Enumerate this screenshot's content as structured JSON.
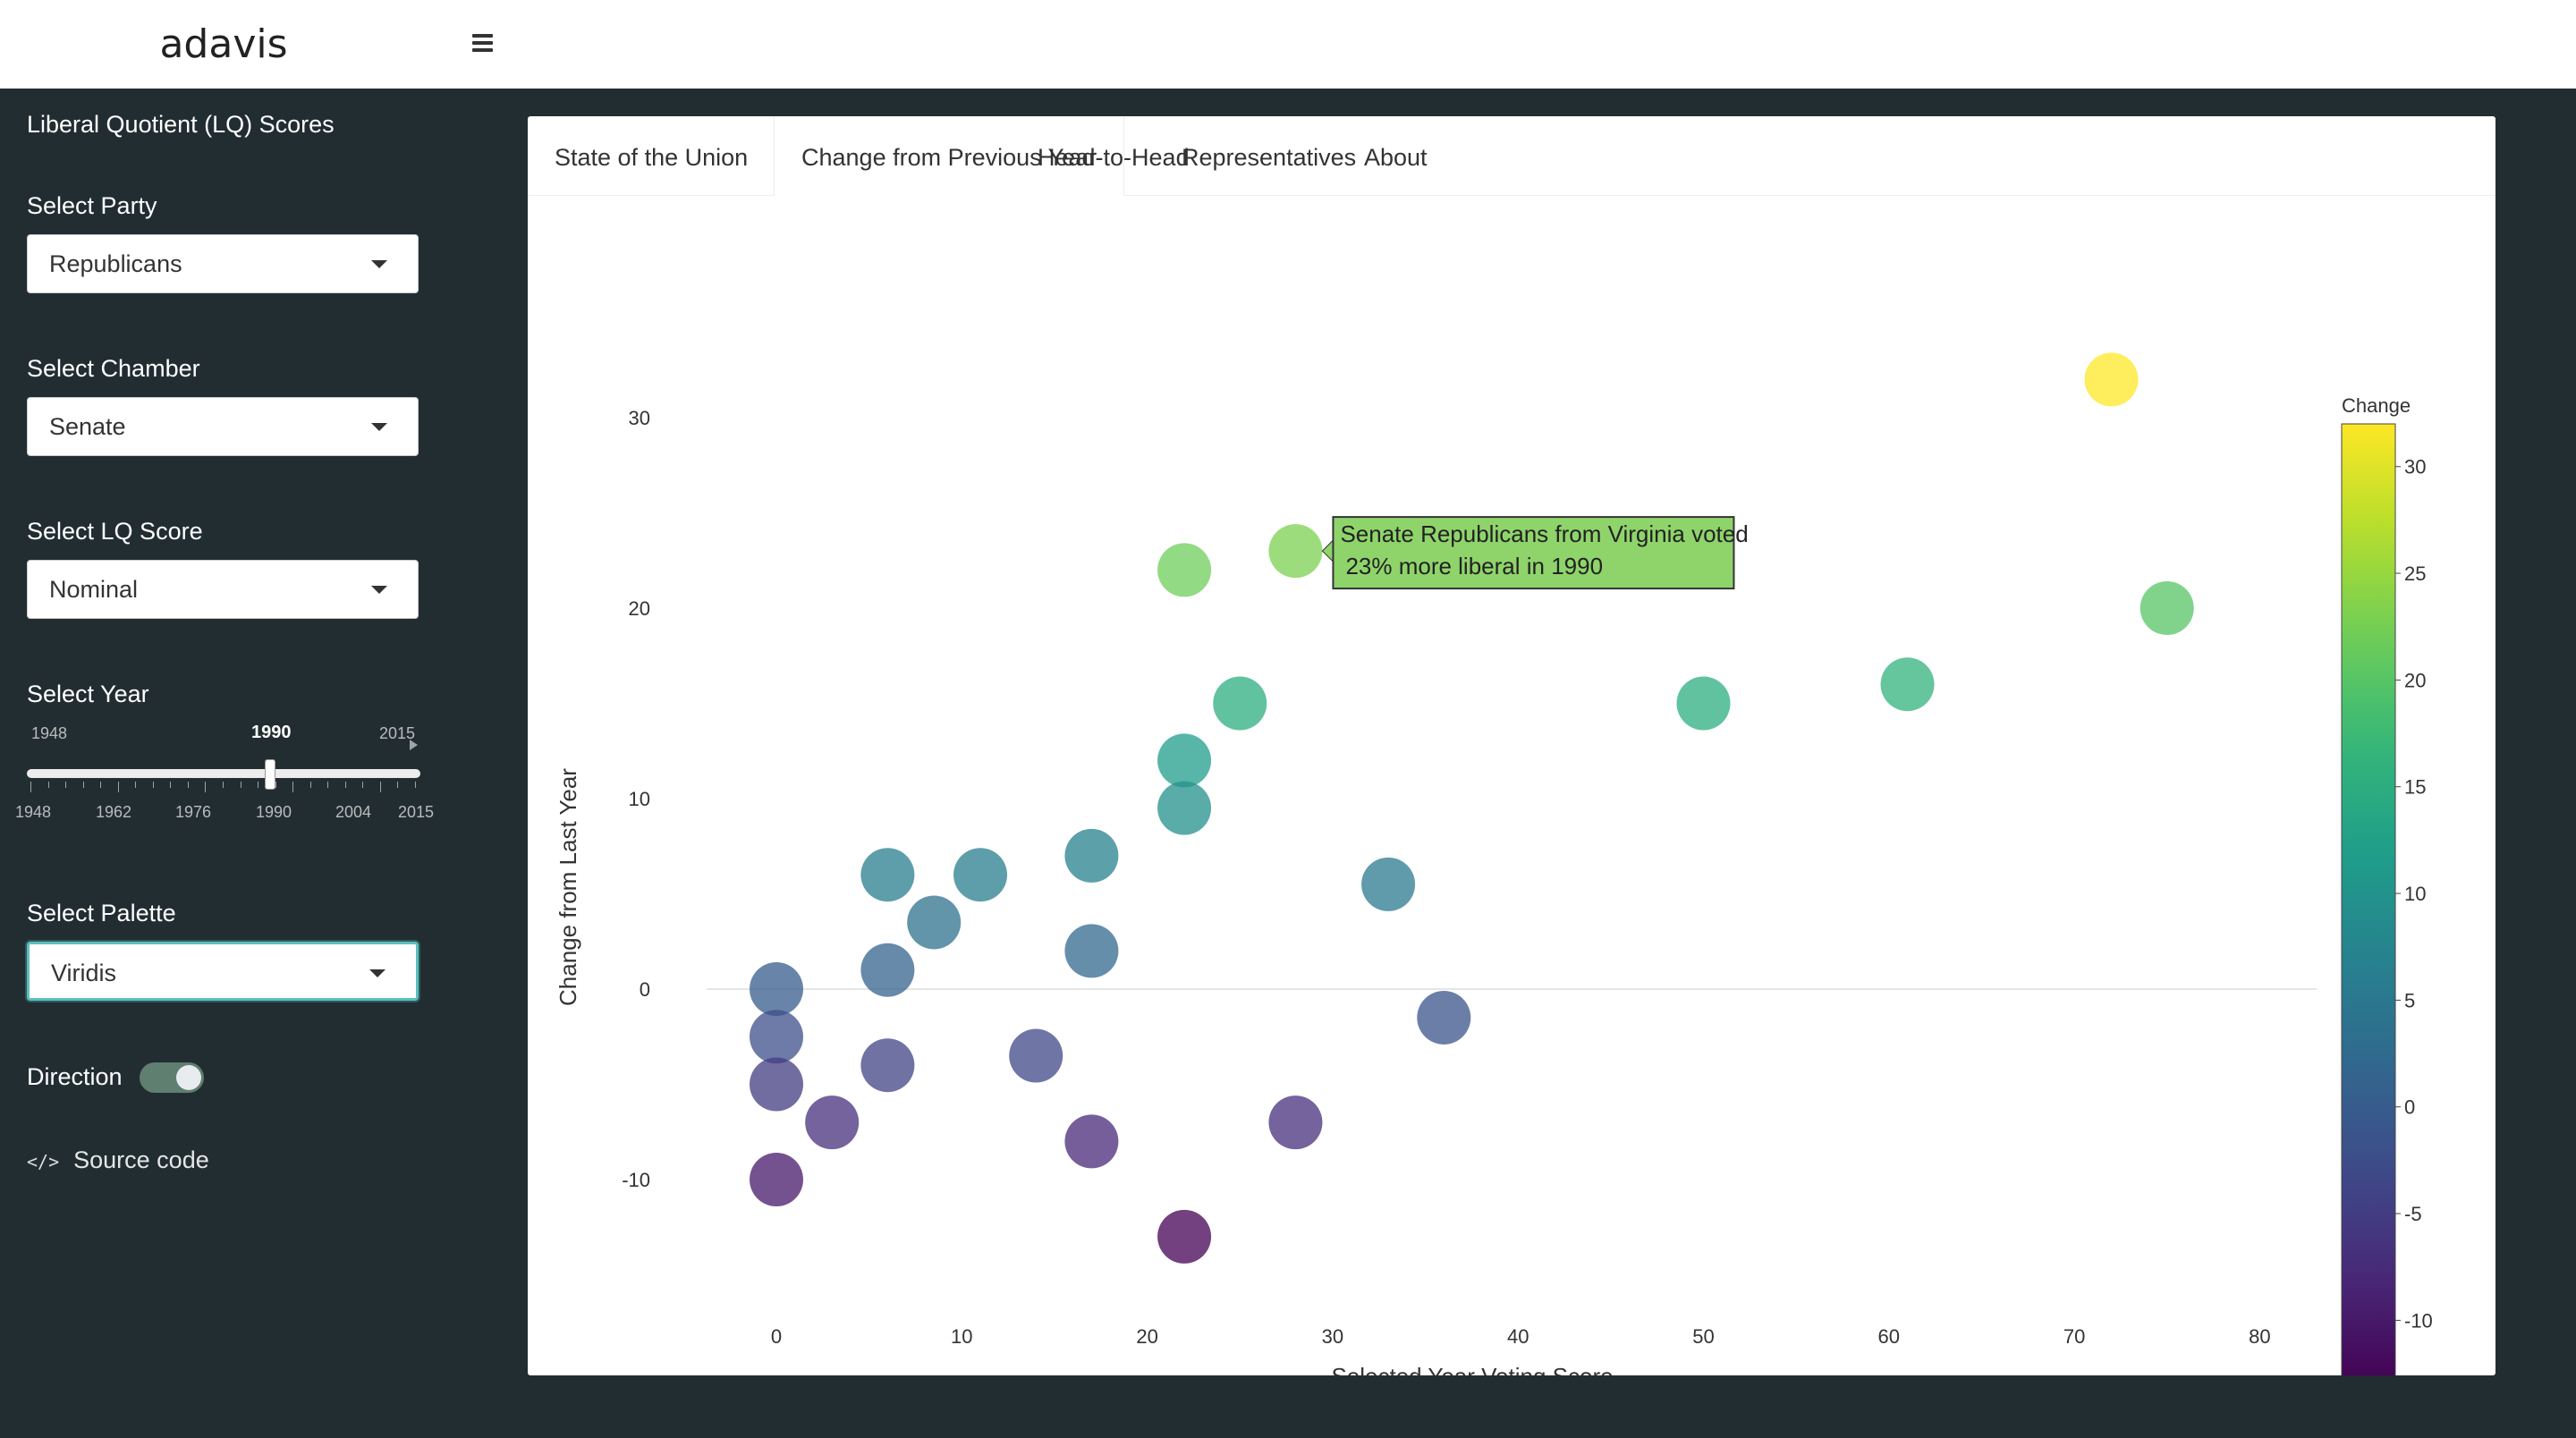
{
  "app": {
    "logo": "adavis"
  },
  "sidebar": {
    "title": "Liberal Quotient (LQ) Scores",
    "party": {
      "label": "Select Party",
      "value": "Republicans"
    },
    "chamber": {
      "label": "Select Chamber",
      "value": "Senate"
    },
    "lq_score": {
      "label": "Select LQ Score",
      "value": "Nominal"
    },
    "year": {
      "label": "Select Year",
      "min": "1948",
      "max": "2015",
      "value": "1990",
      "ticks": [
        "1948",
        "1962",
        "1976",
        "1990",
        "2004",
        "2015"
      ]
    },
    "palette": {
      "label": "Select Palette",
      "value": "Viridis"
    },
    "direction_label": "Direction",
    "direction_on": true,
    "source_label": "Source code"
  },
  "tabs": [
    {
      "label": "State of the Union",
      "active": false
    },
    {
      "label": "Change from Previous Year",
      "active": true
    },
    {
      "label": "Head-to-Head",
      "active": false
    },
    {
      "label": "Representatives",
      "active": false
    },
    {
      "label": "About",
      "active": false
    }
  ],
  "tooltip": {
    "line1": "Senate Republicans from Virginia voted",
    "line2": "23% more liberal in 1990",
    "color": "#8fd46b"
  },
  "chart_data": {
    "type": "scatter",
    "xlabel": "Selected Year Voting Score",
    "ylabel": "Change from Last Year",
    "xlim": [
      -7,
      84
    ],
    "ylim": [
      -16.5,
      38.5
    ],
    "xticks": [
      0,
      10,
      20,
      30,
      40,
      50,
      60,
      70,
      80
    ],
    "yticks": [
      -10,
      0,
      10,
      20,
      30
    ],
    "colorbar": {
      "label": "Change",
      "min": -13,
      "max": 32,
      "ticks": [
        -10,
        -5,
        0,
        5,
        10,
        15,
        20,
        25,
        30
      ],
      "palette": "Viridis"
    },
    "points": [
      {
        "x": 72,
        "y": 32
      },
      {
        "x": 75,
        "y": 20
      },
      {
        "x": 22,
        "y": 22
      },
      {
        "x": 28,
        "y": 23
      },
      {
        "x": 25,
        "y": 15
      },
      {
        "x": 50,
        "y": 15
      },
      {
        "x": 61,
        "y": 16
      },
      {
        "x": 22,
        "y": 12
      },
      {
        "x": 22,
        "y": 9.5
      },
      {
        "x": 17,
        "y": 7
      },
      {
        "x": 6,
        "y": 6
      },
      {
        "x": 11,
        "y": 6
      },
      {
        "x": 8.5,
        "y": 3.5
      },
      {
        "x": 33,
        "y": 5.5
      },
      {
        "x": 6,
        "y": 1
      },
      {
        "x": 17,
        "y": 2
      },
      {
        "x": 0,
        "y": 0
      },
      {
        "x": 36,
        "y": -1.5
      },
      {
        "x": 0,
        "y": -2.5
      },
      {
        "x": 6,
        "y": -4
      },
      {
        "x": 14,
        "y": -3.5
      },
      {
        "x": 0,
        "y": -5
      },
      {
        "x": 3,
        "y": -7
      },
      {
        "x": 17,
        "y": -8
      },
      {
        "x": 28,
        "y": -7
      },
      {
        "x": 0,
        "y": -10
      },
      {
        "x": 22,
        "y": -13
      }
    ]
  }
}
